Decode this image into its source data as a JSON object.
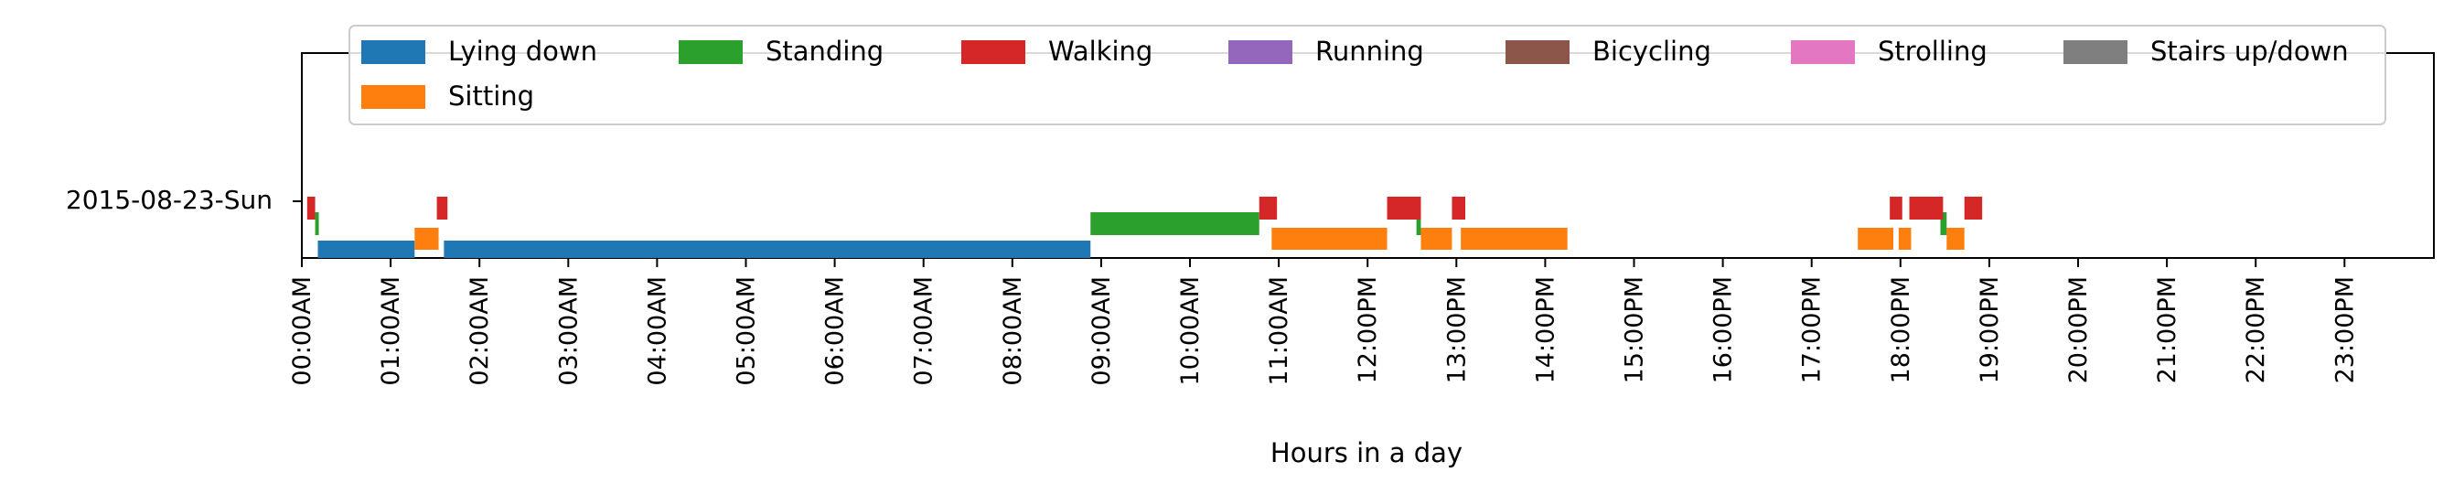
{
  "chart_data": {
    "type": "timeline",
    "title": "",
    "xlabel": "Hours in a day",
    "ylabel": "",
    "xlim_hours": [
      0,
      24
    ],
    "grid": false,
    "legend_position": "top",
    "day_label": "2015-08-23-Sun",
    "x_tick_labels": [
      "00:00AM",
      "01:00AM",
      "02:00AM",
      "03:00AM",
      "04:00AM",
      "05:00AM",
      "06:00AM",
      "07:00AM",
      "08:00AM",
      "09:00AM",
      "10:00AM",
      "11:00AM",
      "12:00PM",
      "13:00PM",
      "14:00PM",
      "15:00PM",
      "16:00PM",
      "17:00PM",
      "18:00PM",
      "19:00PM",
      "20:00PM",
      "21:00PM",
      "22:00PM",
      "23:00PM"
    ],
    "activities": [
      {
        "name": "Lying down",
        "color": "#1f77b4",
        "intervals_hours": [
          [
            0.18,
            1.27
          ],
          [
            1.6,
            8.88
          ]
        ]
      },
      {
        "name": "Sitting",
        "color": "#ff7f0e",
        "intervals_hours": [
          [
            1.27,
            1.54
          ],
          [
            10.92,
            12.22
          ],
          [
            12.6,
            12.95
          ],
          [
            13.05,
            14.25
          ],
          [
            17.52,
            17.92
          ],
          [
            17.98,
            18.12
          ],
          [
            18.52,
            18.72
          ]
        ]
      },
      {
        "name": "Standing",
        "color": "#2ca02c",
        "intervals_hours": [
          [
            0.15,
            0.19
          ],
          [
            8.88,
            10.78
          ],
          [
            12.55,
            12.6
          ],
          [
            18.45,
            18.52
          ]
        ]
      },
      {
        "name": "Walking",
        "color": "#d62728",
        "intervals_hours": [
          [
            0.06,
            0.15
          ],
          [
            1.52,
            1.64
          ],
          [
            10.78,
            10.98
          ],
          [
            12.22,
            12.6
          ],
          [
            12.95,
            13.1
          ],
          [
            17.88,
            18.02
          ],
          [
            18.1,
            18.48
          ],
          [
            18.72,
            18.92
          ]
        ]
      },
      {
        "name": "Running",
        "color": "#9467bd",
        "intervals_hours": []
      },
      {
        "name": "Bicycling",
        "color": "#8c564b",
        "intervals_hours": []
      },
      {
        "name": "Strolling",
        "color": "#e377c2",
        "intervals_hours": []
      },
      {
        "name": "Stairs up/down",
        "color": "#7f7f7f",
        "intervals_hours": []
      }
    ]
  }
}
